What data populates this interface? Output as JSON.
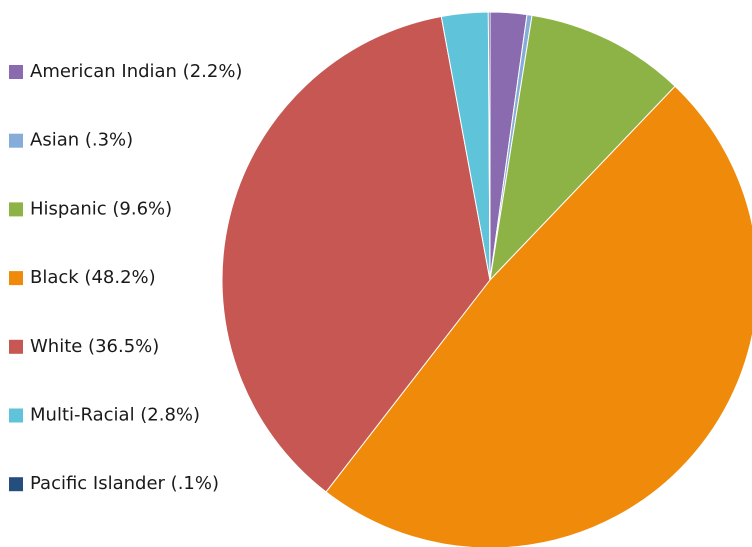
{
  "chart_data": {
    "type": "pie",
    "categories": [
      "American Indian (2.2%)",
      "Asian (.3%)",
      "Hispanic (9.6%)",
      "Black (48.2%)",
      "White (36.5%)",
      "Multi-Racial (2.8%)",
      "Pacific Islander (.1%)"
    ],
    "values": [
      2.2,
      0.3,
      9.6,
      48.2,
      36.5,
      2.8,
      0.1
    ],
    "colors": [
      "#8a6bb0",
      "#86acd8",
      "#8db347",
      "#f08a0a",
      "#c65752",
      "#5fc3da",
      "#244f7c"
    ],
    "legend": "left"
  }
}
